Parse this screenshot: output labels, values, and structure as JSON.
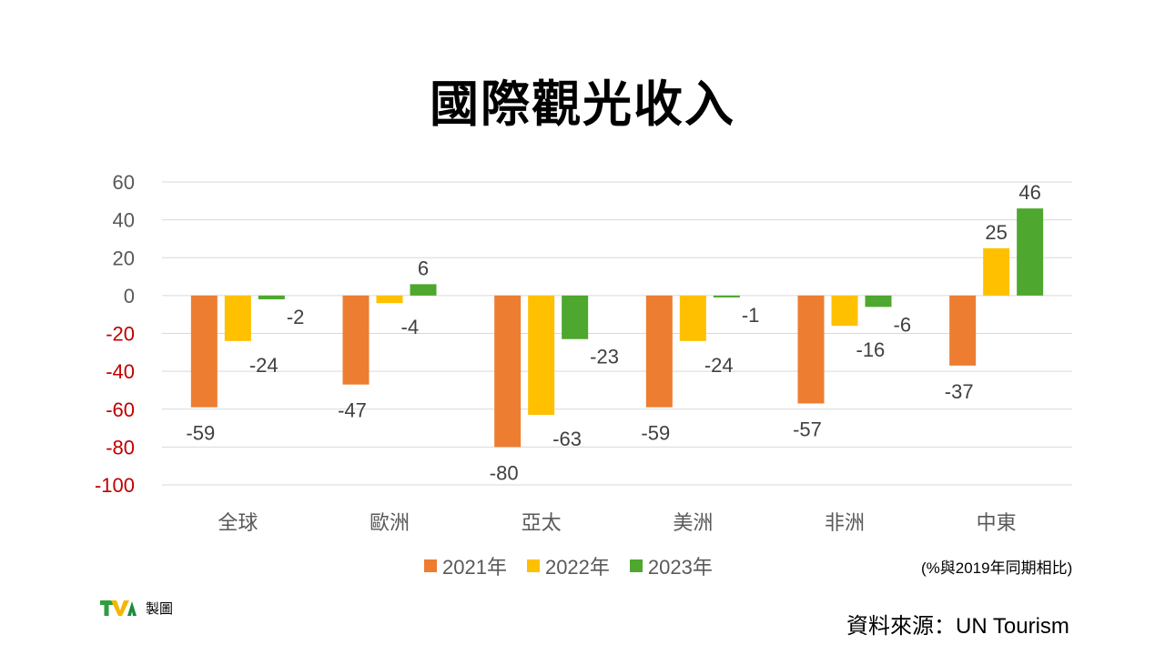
{
  "title": "國際觀光收入",
  "colors": {
    "y2021": "#ED7D31",
    "y2022": "#FFC000",
    "y2023": "#4EA72E",
    "negative_tick": "#C00000",
    "positive_tick": "#595959"
  },
  "chart_data": {
    "type": "bar",
    "categories": [
      "全球",
      "歐洲",
      "亞太",
      "美洲",
      "非洲",
      "中東"
    ],
    "series": [
      {
        "name": "2021年",
        "values": [
          -59,
          -47,
          -80,
          -59,
          -57,
          -37
        ]
      },
      {
        "name": "2022年",
        "values": [
          -24,
          -4,
          -63,
          -24,
          -16,
          25
        ]
      },
      {
        "name": "2023年",
        "values": [
          -2,
          6,
          -23,
          -1,
          -6,
          46
        ]
      }
    ],
    "y_ticks": [
      "60",
      "40",
      "20",
      "0",
      "-20",
      "-40",
      "-60",
      "-80",
      "-100"
    ],
    "ylim": [
      -100,
      60
    ],
    "grid": true,
    "legend_position": "bottom"
  },
  "unit_note": "(%與2019年同期相比)",
  "logo": {
    "icon": "tva-logo",
    "caption": "製圖"
  },
  "source": "資料來源：UN Tourism"
}
